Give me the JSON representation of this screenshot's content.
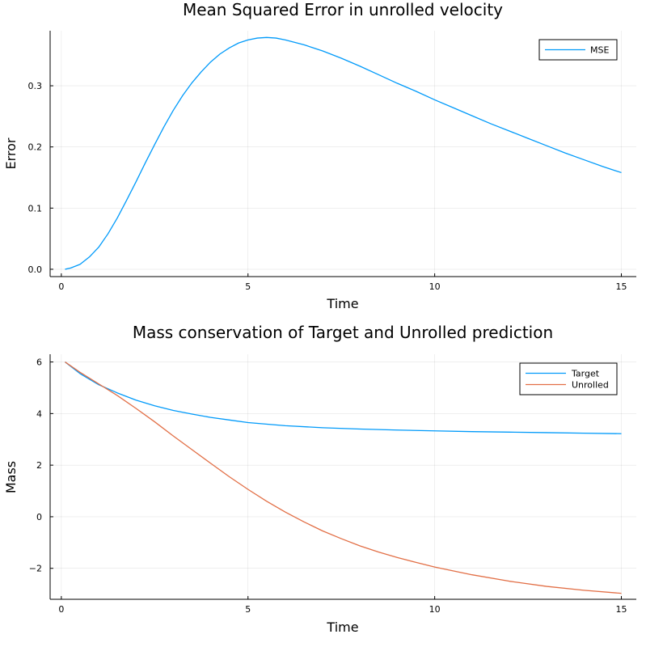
{
  "chart_data": [
    {
      "type": "line",
      "title": "Mean Squared Error in unrolled velocity",
      "xlabel": "Time",
      "ylabel": "Error",
      "xlim": [
        -0.3,
        15.4
      ],
      "ylim": [
        -0.012,
        0.39
      ],
      "xticks": [
        0,
        5,
        10,
        15
      ],
      "xtick_labels": [
        "0",
        "5",
        "10",
        "15"
      ],
      "yticks": [
        0.0,
        0.1,
        0.2,
        0.3
      ],
      "ytick_labels": [
        "0.0",
        "0.1",
        "0.2",
        "0.3"
      ],
      "grid": true,
      "legend_position": "top-right",
      "series": [
        {
          "name": "MSE",
          "color": "#009AFA",
          "x": [
            0.1,
            0.25,
            0.5,
            0.75,
            1.0,
            1.25,
            1.5,
            1.75,
            2.0,
            2.25,
            2.5,
            2.75,
            3.0,
            3.25,
            3.5,
            3.75,
            4.0,
            4.25,
            4.5,
            4.75,
            5.0,
            5.25,
            5.5,
            5.75,
            6.0,
            6.5,
            7.0,
            7.5,
            8.0,
            8.5,
            9.0,
            9.5,
            10.0,
            10.5,
            11.0,
            11.5,
            12.0,
            12.5,
            13.0,
            13.5,
            14.0,
            14.5,
            15.0
          ],
          "y": [
            0.0,
            0.002,
            0.008,
            0.02,
            0.036,
            0.058,
            0.084,
            0.113,
            0.143,
            0.174,
            0.204,
            0.233,
            0.26,
            0.284,
            0.305,
            0.323,
            0.339,
            0.352,
            0.362,
            0.37,
            0.375,
            0.378,
            0.379,
            0.378,
            0.375,
            0.367,
            0.357,
            0.345,
            0.332,
            0.318,
            0.304,
            0.291,
            0.277,
            0.264,
            0.251,
            0.238,
            0.226,
            0.214,
            0.202,
            0.19,
            0.179,
            0.168,
            0.158
          ]
        }
      ]
    },
    {
      "type": "line",
      "title": "Mass conservation of Target and Unrolled prediction",
      "xlabel": "Time",
      "ylabel": "Mass",
      "xlim": [
        -0.3,
        15.4
      ],
      "ylim": [
        -3.2,
        6.3
      ],
      "xticks": [
        0,
        5,
        10,
        15
      ],
      "xtick_labels": [
        "0",
        "5",
        "10",
        "15"
      ],
      "yticks": [
        -2,
        0,
        2,
        4,
        6
      ],
      "ytick_labels": [
        "−2",
        "0",
        "2",
        "4",
        "6"
      ],
      "grid": true,
      "legend_position": "top-right",
      "series": [
        {
          "name": "Target",
          "color": "#009AFA",
          "x": [
            0.1,
            0.5,
            1.0,
            1.5,
            2.0,
            2.5,
            3.0,
            3.5,
            4.0,
            4.5,
            5.0,
            6.0,
            7.0,
            8.0,
            9.0,
            10.0,
            11.0,
            12.0,
            13.0,
            14.0,
            15.0
          ],
          "y": [
            6.0,
            5.55,
            5.12,
            4.8,
            4.52,
            4.3,
            4.12,
            3.98,
            3.85,
            3.75,
            3.65,
            3.53,
            3.45,
            3.4,
            3.36,
            3.33,
            3.3,
            3.28,
            3.26,
            3.24,
            3.22
          ]
        },
        {
          "name": "Unrolled",
          "color": "#E26F46",
          "x": [
            0.1,
            0.5,
            1.0,
            1.5,
            2.0,
            2.5,
            3.0,
            3.5,
            4.0,
            4.5,
            5.0,
            5.5,
            6.0,
            6.5,
            7.0,
            7.5,
            8.0,
            8.5,
            9.0,
            9.5,
            10.0,
            11.0,
            12.0,
            13.0,
            14.0,
            15.0
          ],
          "y": [
            6.0,
            5.6,
            5.15,
            4.7,
            4.2,
            3.68,
            3.13,
            2.6,
            2.07,
            1.55,
            1.06,
            0.6,
            0.18,
            -0.2,
            -0.55,
            -0.85,
            -1.13,
            -1.37,
            -1.58,
            -1.77,
            -1.95,
            -2.25,
            -2.5,
            -2.7,
            -2.85,
            -2.97
          ]
        }
      ]
    }
  ]
}
